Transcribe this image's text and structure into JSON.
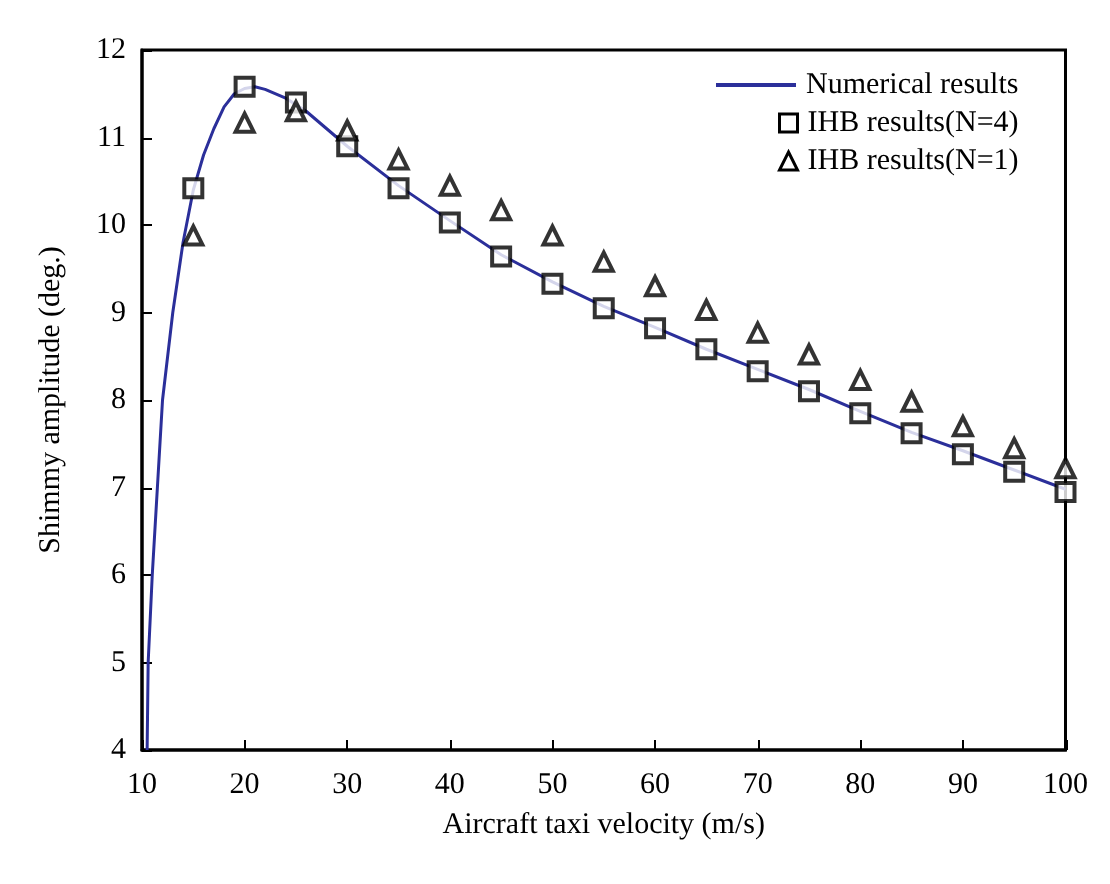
{
  "chart_data": {
    "type": "line",
    "xlabel": "Aircraft taxi velocity (m/s)",
    "ylabel": "Shimmy amplitude (deg.)",
    "xlim": [
      10,
      100
    ],
    "xticks": [
      10,
      20,
      30,
      40,
      50,
      60,
      70,
      80,
      90,
      100
    ],
    "ylim": [
      4,
      12
    ],
    "yticks": [
      4,
      5,
      6,
      7,
      8,
      9,
      10,
      11,
      12
    ],
    "grid": false,
    "legend": "top right",
    "series": [
      {
        "name": "Numerical results",
        "type": "line",
        "color": "#2b2f9a",
        "marker": "none",
        "x": [
          10.5,
          10.6,
          11,
          11.5,
          12,
          13,
          14,
          15,
          16,
          17,
          18,
          19,
          20,
          21,
          22,
          24,
          26,
          28,
          30,
          35,
          40,
          45,
          50,
          55,
          60,
          65,
          70,
          75,
          80,
          85,
          90,
          95,
          100
        ],
        "values": [
          4,
          5.0,
          6.0,
          7.0,
          8.0,
          9.0,
          9.8,
          10.4,
          10.8,
          11.1,
          11.35,
          11.5,
          11.56,
          11.58,
          11.55,
          11.45,
          11.3,
          11.1,
          10.9,
          10.45,
          10.05,
          9.66,
          9.35,
          9.07,
          8.83,
          8.58,
          8.35,
          8.12,
          7.87,
          7.63,
          7.42,
          7.2,
          6.98
        ]
      },
      {
        "name": "IHB results(N=4)",
        "type": "scatter",
        "color": "#000000",
        "marker": "square",
        "x": [
          15,
          20,
          25,
          30,
          35,
          40,
          45,
          50,
          55,
          60,
          65,
          70,
          75,
          80,
          85,
          90,
          95,
          100
        ],
        "values": [
          10.42,
          11.58,
          11.4,
          10.9,
          10.42,
          10.03,
          9.64,
          9.33,
          9.05,
          8.82,
          8.58,
          8.33,
          8.1,
          7.85,
          7.62,
          7.38,
          7.18,
          6.95
        ]
      },
      {
        "name": "IHB results(N=1)",
        "type": "scatter",
        "color": "#000000",
        "marker": "triangle",
        "x": [
          15,
          20,
          25,
          30,
          35,
          40,
          45,
          50,
          55,
          60,
          65,
          70,
          75,
          80,
          85,
          90,
          95,
          100
        ],
        "values": [
          9.88,
          11.17,
          11.3,
          11.08,
          10.75,
          10.45,
          10.17,
          9.88,
          9.58,
          9.3,
          9.03,
          8.77,
          8.52,
          8.23,
          7.98,
          7.7,
          7.45,
          7.22
        ]
      }
    ]
  }
}
